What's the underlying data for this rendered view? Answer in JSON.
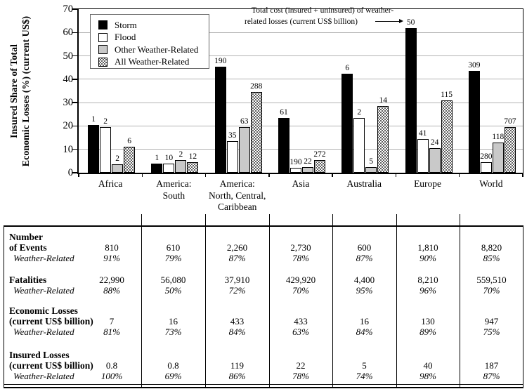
{
  "chart_data": {
    "type": "bar",
    "ylabel_line1": "Insured Share of Total",
    "ylabel_line2": "Economic Losses (%) (current US$)",
    "ylim": [
      0,
      70
    ],
    "yticks": [
      0,
      10,
      20,
      30,
      40,
      50,
      60,
      70
    ],
    "grid": "horizontal",
    "legend_position": "top-left",
    "annotation": {
      "line1": "Total cost (insured + uninsured) of weather-",
      "line2": "related losses (current US$ billion)",
      "arrow_points_to_label": "50"
    },
    "categories": [
      [
        "Africa"
      ],
      [
        "America:",
        "South"
      ],
      [
        "America:",
        "North, Central,",
        "Caribbean"
      ],
      [
        "Asia"
      ],
      [
        "Australia"
      ],
      [
        "Europe"
      ],
      [
        "World"
      ]
    ],
    "series": [
      {
        "name": "Storm",
        "fill": "black",
        "insured_share_pct": [
          20.5,
          4,
          45.5,
          23.5,
          42.5,
          62,
          43.5
        ],
        "total_cost_labels": [
          "1",
          "1",
          "190",
          "61",
          "6",
          "50",
          "309"
        ]
      },
      {
        "name": "Flood",
        "fill": "white",
        "insured_share_pct": [
          19.5,
          4,
          13.5,
          2,
          23.5,
          14.5,
          4.5
        ],
        "total_cost_labels": [
          "2",
          "10",
          "35",
          "190",
          "2",
          "41",
          "280"
        ]
      },
      {
        "name": "Other Weather-Related",
        "fill": "gray",
        "insured_share_pct": [
          3.5,
          5.5,
          19.5,
          2.5,
          2.5,
          10.5,
          13
        ],
        "total_cost_labels": [
          "2",
          "2",
          "63",
          "22",
          "5",
          "24",
          "118"
        ]
      },
      {
        "name": "All Weather-Related",
        "fill": "stipple",
        "insured_share_pct": [
          11,
          4.5,
          34.5,
          5.5,
          28.5,
          31,
          19.5
        ],
        "total_cost_labels": [
          "6",
          "12",
          "288",
          "272",
          "14",
          "115",
          "707"
        ]
      }
    ]
  },
  "table": {
    "columns": [
      "Africa",
      "America: South",
      "America: North, Central, Caribbean",
      "Asia",
      "Australia",
      "Europe",
      "World"
    ],
    "rows": [
      {
        "header_lines": [
          "Number",
          "of Events"
        ],
        "sub_label": "Weather-Related",
        "values": [
          "810",
          "610",
          "2,260",
          "2,730",
          "600",
          "1,810",
          "8,820"
        ],
        "sub_values": [
          "91%",
          "79%",
          "87%",
          "78%",
          "87%",
          "90%",
          "85%"
        ]
      },
      {
        "header_lines": [
          "Fatalities"
        ],
        "sub_label": "Weather-Related",
        "values": [
          "22,990",
          "56,080",
          "37,910",
          "429,920",
          "4,400",
          "8,210",
          "559,510"
        ],
        "sub_values": [
          "88%",
          "50%",
          "72%",
          "70%",
          "95%",
          "96%",
          "70%"
        ]
      },
      {
        "header_lines": [
          "Economic Losses",
          "(current US$ billion)"
        ],
        "sub_label": "Weather-Related",
        "values": [
          "7",
          "16",
          "433",
          "433",
          "16",
          "130",
          "947"
        ],
        "sub_values": [
          "81%",
          "73%",
          "84%",
          "63%",
          "84%",
          "89%",
          "75%"
        ]
      },
      {
        "header_lines": [
          "Insured Losses",
          "(current US$ billion)"
        ],
        "sub_label": "Weather-Related",
        "values": [
          "0.8",
          "0.8",
          "119",
          "22",
          "5",
          "40",
          "187"
        ],
        "sub_values": [
          "100%",
          "69%",
          "86%",
          "78%",
          "74%",
          "98%",
          "87%"
        ]
      }
    ]
  },
  "colors": {
    "bar_black": "#000000",
    "bar_white": "#ffffff",
    "bar_gray": "#c9c9c9",
    "gridline": "#b3b3b3",
    "border": "#000000"
  }
}
